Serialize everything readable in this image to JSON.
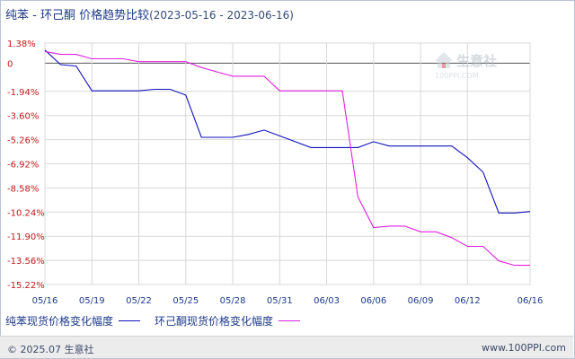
{
  "title": {
    "main": "纯苯 - 环己酮 价格趋势比较",
    "dates": "(2023-05-16 - 2023-06-16)"
  },
  "watermark": {
    "brand": "生意社",
    "url": "100PPI.COM"
  },
  "footer": {
    "copyright": "© 2025.07 生意社",
    "url": "www.100PPI.com"
  },
  "chart_data": {
    "type": "line",
    "title": "纯苯 - 环己酮 价格趋势比较(2023-05-16 - 2023-06-16)",
    "xlabel": "",
    "ylabel": "",
    "y_ticks": [
      "1.38%",
      "0",
      "-1.94%",
      "-3.60%",
      "-5.26%",
      "-6.92%",
      "-8.58%",
      "-10.24%",
      "-11.90%",
      "-13.56%",
      "-15.22%"
    ],
    "y_tick_values": [
      1.38,
      0,
      -1.94,
      -3.6,
      -5.26,
      -6.92,
      -8.58,
      -10.24,
      -11.9,
      -13.56,
      -15.22
    ],
    "ylim": [
      -15.22,
      1.38
    ],
    "x_ticks": [
      "05/16",
      "05/19",
      "05/22",
      "05/25",
      "05/28",
      "05/31",
      "06/03",
      "06/06",
      "06/09",
      "06/12",
      "06/16"
    ],
    "x_tick_day_index": [
      0,
      3,
      6,
      9,
      12,
      15,
      18,
      21,
      24,
      27,
      31
    ],
    "grid": true,
    "legend_position": "bottom",
    "series": [
      {
        "name": "纯苯现货价格变化幅度",
        "color": "#1010c0",
        "x": [
          0,
          1,
          2,
          3,
          4,
          5,
          6,
          7,
          8,
          9,
          10,
          11,
          12,
          13,
          14,
          15,
          16,
          17,
          18,
          19,
          20,
          21,
          22,
          23,
          24,
          25,
          26,
          27,
          28,
          29,
          30,
          31
        ],
        "values": [
          0.9,
          -0.1,
          -0.2,
          -1.9,
          -1.9,
          -1.9,
          -1.9,
          -1.8,
          -1.8,
          -2.2,
          -5.1,
          -5.1,
          -5.1,
          -4.9,
          -4.6,
          -5.0,
          -5.4,
          -5.8,
          -5.8,
          -5.8,
          -5.8,
          -5.4,
          -5.7,
          -5.7,
          -5.7,
          -5.7,
          -5.7,
          -6.5,
          -7.5,
          -10.3,
          -10.3,
          -10.2
        ]
      },
      {
        "name": "环己酮现货价格变化幅度",
        "color": "#e020e0",
        "x": [
          0,
          1,
          2,
          3,
          4,
          5,
          6,
          7,
          8,
          9,
          10,
          11,
          12,
          13,
          14,
          15,
          16,
          17,
          18,
          19,
          20,
          21,
          22,
          23,
          24,
          25,
          26,
          27,
          28,
          29,
          30,
          31
        ],
        "values": [
          0.8,
          0.6,
          0.6,
          0.3,
          0.3,
          0.3,
          0.1,
          0.1,
          0.1,
          0.1,
          -0.3,
          -0.6,
          -0.9,
          -0.9,
          -0.9,
          -1.9,
          -1.9,
          -1.9,
          -1.9,
          -1.9,
          -9.2,
          -11.3,
          -11.2,
          -11.2,
          -11.6,
          -11.6,
          -12.0,
          -12.6,
          -12.6,
          -13.6,
          -13.9,
          -13.9
        ]
      }
    ]
  }
}
